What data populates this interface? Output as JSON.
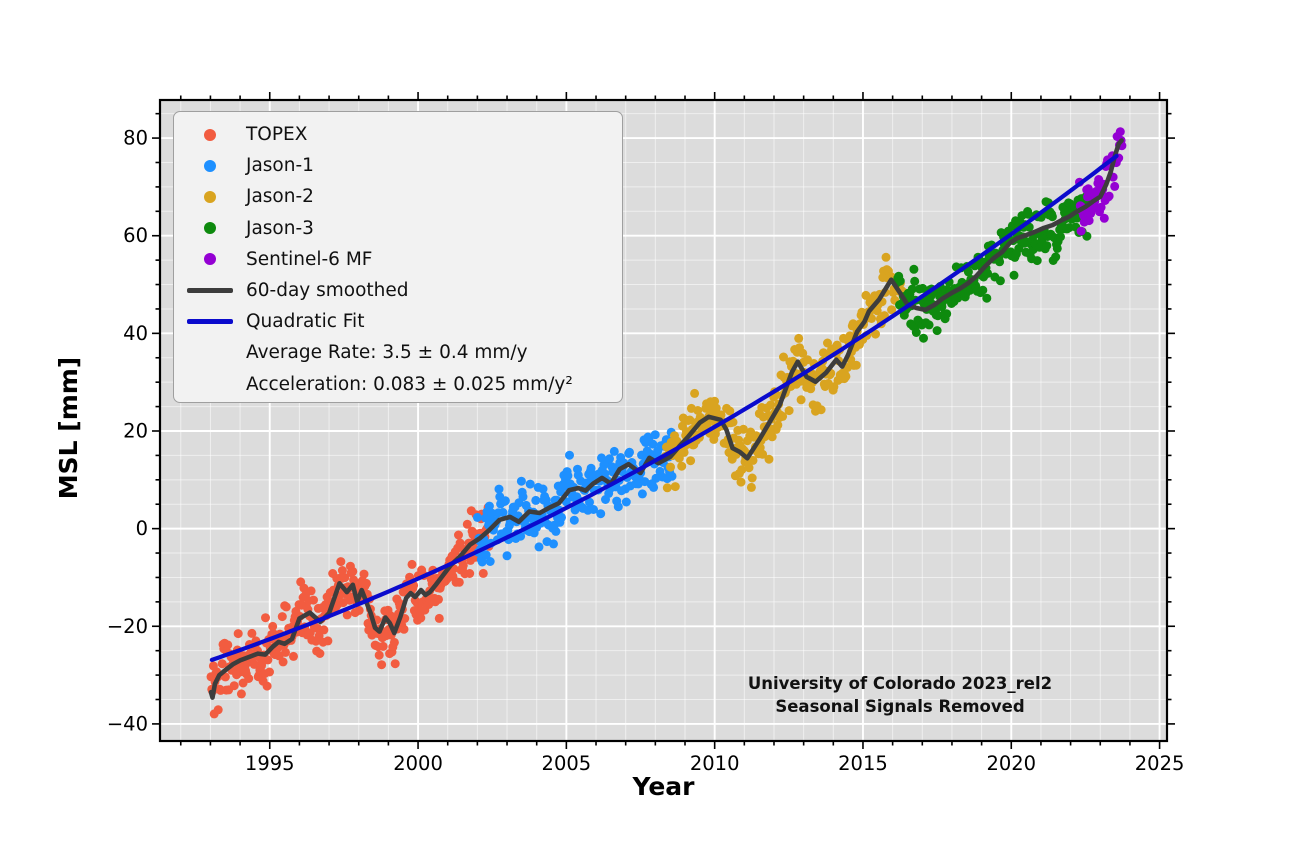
{
  "figure": {
    "background": "#ffffff"
  },
  "annotation": {
    "line1": "University of Colorado 2023_rel2",
    "line2": "Seasonal Signals Removed"
  },
  "chart_data": {
    "type": "scatter",
    "title": "",
    "xlabel": "Year",
    "ylabel": "MSL [mm]",
    "xlim": [
      1991.3,
      2025.25
    ],
    "ylim": [
      -43.5,
      87.8
    ],
    "grid": true,
    "legend_position": "upper left",
    "plot_background": "#dcdcdc",
    "grid_major_color": "#ffffff",
    "grid_minor_color": "rgba(255,255,255,0.55)",
    "x_major_ticks": [
      1995,
      2000,
      2005,
      2010,
      2015,
      2020,
      2025
    ],
    "x_tick_labels": [
      "1995",
      "2000",
      "2005",
      "2010",
      "2015",
      "2020",
      "2025"
    ],
    "y_major_ticks": [
      -40,
      -20,
      0,
      20,
      40,
      60,
      80
    ],
    "y_tick_labels": [
      "−40",
      "−20",
      "0",
      "20",
      "40",
      "60",
      "80"
    ],
    "x_minor_step": 1,
    "y_minor_step": 5,
    "missions": [
      {
        "name": "TOPEX",
        "color": "#f25c40",
        "start": 1993.02,
        "end": 2002.4
      },
      {
        "name": "Jason-1",
        "color": "#1e90ff",
        "start": 2002.0,
        "end": 2008.6
      },
      {
        "name": "Jason-2",
        "color": "#d9a420",
        "start": 2008.35,
        "end": 2016.38
      },
      {
        "name": "Jason-3",
        "color": "#0e8a0e",
        "start": 2016.15,
        "end": 2022.65
      },
      {
        "name": "Sentinel-6 MF",
        "color": "#9400d3",
        "start": 2022.3,
        "end": 2023.75
      }
    ],
    "scatter_style": {
      "interval_years": 0.027,
      "noise_mm": 3.0,
      "marker_radius": 4.5
    },
    "smoothed_series": {
      "name": "60-day smoothed",
      "color": "#3d3d3d",
      "points": [
        [
          1993.02,
          -33.5
        ],
        [
          1993.07,
          -34.6
        ],
        [
          1993.15,
          -31.8
        ],
        [
          1993.3,
          -30.0
        ],
        [
          1993.5,
          -29.0
        ],
        [
          1993.75,
          -27.8
        ],
        [
          1994.0,
          -27.0
        ],
        [
          1994.3,
          -26.3
        ],
        [
          1994.6,
          -25.6
        ],
        [
          1994.85,
          -25.8
        ],
        [
          1995.1,
          -24.2
        ],
        [
          1995.3,
          -23.2
        ],
        [
          1995.5,
          -23.6
        ],
        [
          1995.75,
          -22.6
        ],
        [
          1996.0,
          -18.4
        ],
        [
          1996.35,
          -17.2
        ],
        [
          1996.7,
          -19.1
        ],
        [
          1997.0,
          -17.3
        ],
        [
          1997.35,
          -11.2
        ],
        [
          1997.6,
          -13.0
        ],
        [
          1997.8,
          -11.5
        ],
        [
          1997.95,
          -15.0
        ],
        [
          1998.1,
          -12.6
        ],
        [
          1998.4,
          -17.3
        ],
        [
          1998.55,
          -20.3
        ],
        [
          1998.7,
          -21.1
        ],
        [
          1998.9,
          -18.2
        ],
        [
          1999.05,
          -19.4
        ],
        [
          1999.2,
          -21.4
        ],
        [
          1999.4,
          -18.1
        ],
        [
          1999.6,
          -14.2
        ],
        [
          1999.75,
          -13.2
        ],
        [
          1999.9,
          -14.0
        ],
        [
          2000.1,
          -12.6
        ],
        [
          2000.25,
          -13.6
        ],
        [
          2000.4,
          -13.0
        ],
        [
          2000.6,
          -11.5
        ],
        [
          2000.75,
          -10.3
        ],
        [
          2001.1,
          -7.5
        ],
        [
          2001.4,
          -5.8
        ],
        [
          2001.75,
          -3.3
        ],
        [
          2002.1,
          -1.9
        ],
        [
          2002.4,
          -0.3
        ],
        [
          2002.75,
          1.8
        ],
        [
          2003.1,
          2.4
        ],
        [
          2003.4,
          1.4
        ],
        [
          2003.75,
          3.5
        ],
        [
          2004.1,
          3.2
        ],
        [
          2004.4,
          4.2
        ],
        [
          2004.75,
          5.2
        ],
        [
          2005.1,
          7.9
        ],
        [
          2005.4,
          8.3
        ],
        [
          2005.65,
          7.8
        ],
        [
          2005.9,
          9.2
        ],
        [
          2006.2,
          10.4
        ],
        [
          2006.5,
          9.2
        ],
        [
          2006.8,
          12.2
        ],
        [
          2007.1,
          13.2
        ],
        [
          2007.5,
          11.4
        ],
        [
          2007.8,
          14.5
        ],
        [
          2008.1,
          13.4
        ],
        [
          2008.5,
          14.7
        ],
        [
          2008.8,
          16.8
        ],
        [
          2009.1,
          18.8
        ],
        [
          2009.5,
          21.7
        ],
        [
          2009.8,
          22.9
        ],
        [
          2010.2,
          22.3
        ],
        [
          2010.4,
          20.2
        ],
        [
          2010.6,
          16.5
        ],
        [
          2010.85,
          15.7
        ],
        [
          2011.1,
          14.4
        ],
        [
          2011.5,
          18.2
        ],
        [
          2011.9,
          22.3
        ],
        [
          2012.2,
          25.4
        ],
        [
          2012.6,
          32.0
        ],
        [
          2012.8,
          34.2
        ],
        [
          2013.1,
          31.1
        ],
        [
          2013.4,
          30.1
        ],
        [
          2013.75,
          31.9
        ],
        [
          2014.1,
          34.6
        ],
        [
          2014.3,
          33.2
        ],
        [
          2014.5,
          35.6
        ],
        [
          2014.8,
          40.3
        ],
        [
          2015.05,
          42.4
        ],
        [
          2015.2,
          44.5
        ],
        [
          2015.55,
          47.0
        ],
        [
          2015.8,
          49.5
        ],
        [
          2015.95,
          51.0
        ],
        [
          2016.25,
          48.3
        ],
        [
          2016.5,
          45.9
        ],
        [
          2016.8,
          45.2
        ],
        [
          2017.1,
          44.8
        ],
        [
          2017.4,
          45.8
        ],
        [
          2017.7,
          47.2
        ],
        [
          2018.0,
          48.3
        ],
        [
          2018.3,
          49.3
        ],
        [
          2018.55,
          50.3
        ],
        [
          2018.8,
          51.6
        ],
        [
          2019.1,
          53.6
        ],
        [
          2019.4,
          55.4
        ],
        [
          2019.7,
          56.7
        ],
        [
          2019.95,
          58.5
        ],
        [
          2020.2,
          59.5
        ],
        [
          2020.5,
          60.1
        ],
        [
          2020.8,
          60.8
        ],
        [
          2021.1,
          61.6
        ],
        [
          2021.4,
          62.2
        ],
        [
          2021.7,
          63.2
        ],
        [
          2021.95,
          63.9
        ],
        [
          2022.2,
          64.9
        ],
        [
          2022.5,
          65.9
        ],
        [
          2022.75,
          67.0
        ],
        [
          2023.0,
          68.0
        ],
        [
          2023.2,
          70.5
        ],
        [
          2023.35,
          73.0
        ],
        [
          2023.5,
          76.5
        ],
        [
          2023.62,
          78.8
        ],
        [
          2023.72,
          79.5
        ]
      ]
    },
    "quadratic_fit": {
      "name": "Quadratic Fit",
      "color": "#0b0bcd",
      "t0": 1993,
      "coeffs": [
        -27.0,
        2.1,
        0.042
      ],
      "t_range": [
        1993.05,
        2023.75
      ]
    },
    "average_rate_label": "Average Rate: 3.5 ± 0.4 mm/y",
    "acceleration_label": "Acceleration: 0.083 ± 0.025 mm/y²"
  }
}
